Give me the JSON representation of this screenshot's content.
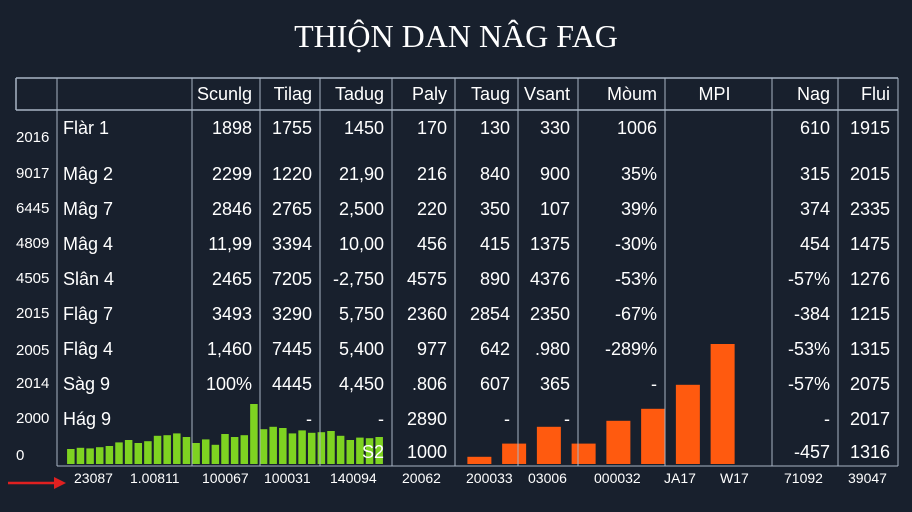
{
  "title": "THIỘN DAN NÂG FAG",
  "colors": {
    "background": "#18202d",
    "grid": "#a8b4c4",
    "green_bars": "#7ed321",
    "orange_bars": "#ff5a0f",
    "arrow": "#e02020"
  },
  "columns": [
    "",
    "Scunlg",
    "Tilag",
    "Tadug",
    "Paly",
    "Taug",
    "Vsant",
    "Mòum",
    "MPI",
    "Nag",
    "Flui"
  ],
  "y_labels": [
    "2016",
    "9017",
    "6445",
    "4809",
    "4505",
    "2015",
    "2005",
    "2014",
    "2000",
    "0"
  ],
  "rows": [
    [
      "Flàr 1",
      "1898",
      "1755",
      "1450",
      "170",
      "130",
      "330",
      "1006",
      "",
      "610",
      "1915"
    ],
    [
      "Mâg 2",
      "2299",
      "1220",
      "21,90",
      "216",
      "840",
      "900",
      "35%",
      "",
      "315",
      "2015"
    ],
    [
      "Mâg 7",
      "2846",
      "2765",
      "2,500",
      "220",
      "350",
      "107",
      "39%",
      "",
      "374",
      "2335"
    ],
    [
      "Mâg 4",
      "11,99",
      "3394",
      "10,00",
      "456",
      "415",
      "1375",
      "-30%",
      "",
      "454",
      "1475"
    ],
    [
      "Slân 4",
      "2465",
      "7205",
      "-2,750",
      "4575",
      "890",
      "4376",
      "-53%",
      "",
      "-57%",
      "1276"
    ],
    [
      "Flâg 7",
      "3493",
      "3290",
      "5,750",
      "2360",
      "2854",
      "2350",
      "-67%",
      "",
      "-384",
      "1215"
    ],
    [
      "Flâg 4",
      "1,460",
      "7445",
      "5,400",
      "977",
      "642",
      ".980",
      "-289%",
      "",
      "-53%",
      "1315"
    ],
    [
      "Sàg 9",
      "100%",
      "4445",
      "4,450",
      ".806",
      "607",
      "365",
      "-",
      "",
      "-57%",
      "2075"
    ],
    [
      "Hág 9",
      "",
      "-",
      "-",
      "2890",
      "-",
      "-",
      "",
      "",
      "-",
      "2017"
    ],
    [
      "",
      "",
      "",
      "S2",
      "1000",
      "",
      "",
      "",
      "",
      "-457",
      "1316"
    ]
  ],
  "bottom_labels": [
    "23087",
    "1.00811",
    "100067",
    "100031",
    "140094",
    "20062",
    "200033",
    "03006",
    "000032",
    "JA17",
    "W17",
    "71092",
    "39047"
  ],
  "chart_data": [
    {
      "type": "bar",
      "series": [
        {
          "values": [
            0.25,
            0.27,
            0.26,
            0.28,
            0.3,
            0.36,
            0.4,
            0.35,
            0.38,
            0.47,
            0.48,
            0.51,
            0.45,
            0.35,
            0.41,
            0.32,
            0.5,
            0.45,
            0.48,
            1.0,
            0.58,
            0.62,
            0.6,
            0.51,
            0.56,
            0.52,
            0.53,
            0.55,
            0.47,
            0.4,
            0.44,
            0.43,
            0.45
          ]
        }
      ]
    },
    {
      "type": "bar",
      "series": [
        {
          "values": [
            0.06,
            0.17,
            0.31,
            0.17,
            0.36,
            0.46,
            0.66,
            1.0
          ]
        }
      ]
    }
  ]
}
